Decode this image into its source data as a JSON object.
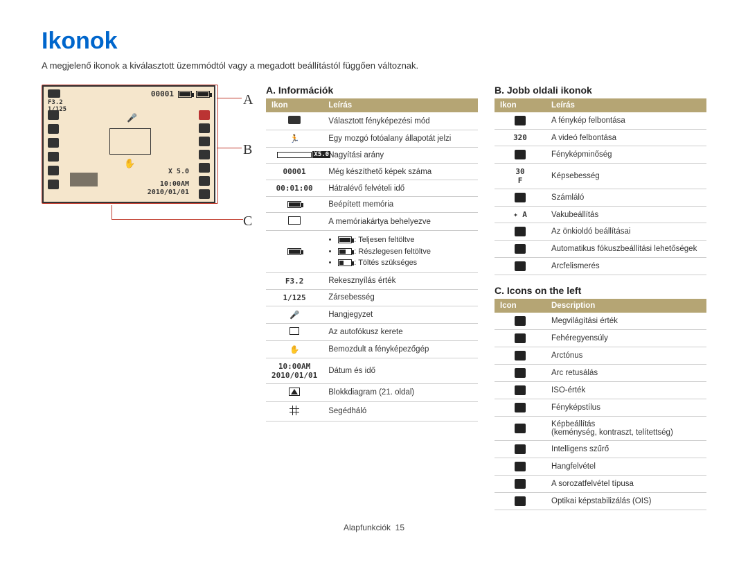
{
  "title": "Ikonok",
  "subtitle": "A megjelenő ikonok a kiválasztott üzemmódtól vagy a megadott beállítástól függően változnak.",
  "labels": {
    "A": "A",
    "B": "B",
    "C": "C"
  },
  "screen": {
    "aperture": "F3.2",
    "shutter": "1/125",
    "counter": "00001",
    "zoom": "X 5.0",
    "time": "10:00AM",
    "date": "2010/01/01"
  },
  "sectionA": {
    "title": "A. Információk",
    "headers": [
      "Ikon",
      "Leírás"
    ],
    "rows": [
      {
        "icon": "camera",
        "desc": "Választott fényképezési mód"
      },
      {
        "icon": "running",
        "desc": "Egy mozgó fotóalany állapotát jelzi"
      },
      {
        "icon": "zoombar",
        "desc": "Nagyítási arány"
      },
      {
        "icon_text": "00001",
        "desc": "Még készíthető képek száma"
      },
      {
        "icon_text": "00:01:00",
        "desc": "Hátralévő felvételi idő"
      },
      {
        "icon": "memory",
        "desc": "Beépített memória"
      },
      {
        "icon": "card",
        "desc": "A memóriakártya behelyezve"
      },
      {
        "icon": "battery",
        "desc_list": [
          ": Teljesen feltöltve",
          ": Részlegesen feltöltve",
          ": Töltés szükséges"
        ],
        "battery_labels": {
          "full": "",
          "half": "",
          "empty": ""
        }
      },
      {
        "icon_text": "F3.2",
        "desc": "Rekesznyílás érték"
      },
      {
        "icon_text": "1/125",
        "desc": "Zársebesség"
      },
      {
        "icon": "mic",
        "desc": "Hangjegyzet"
      },
      {
        "icon": "afframe",
        "desc": "Az autofókusz kerete"
      },
      {
        "icon": "shake",
        "desc": "Bemozdult a fényképezőgép"
      },
      {
        "icon_text": "10:00AM\n2010/01/01",
        "desc": "Dátum és idő"
      },
      {
        "icon": "histogram",
        "desc": "Blokkdiagram (21. oldal)"
      },
      {
        "icon": "grid",
        "desc": "Segédháló"
      }
    ]
  },
  "sectionB": {
    "title": "B. Jobb oldali ikonok",
    "headers": [
      "Ikon",
      "Leírás"
    ],
    "rows": [
      {
        "desc": "A fénykép felbontása"
      },
      {
        "icon_text": "320",
        "desc": "A videó felbontása"
      },
      {
        "desc": "Fényképminőség"
      },
      {
        "icon_text": "30\nF",
        "desc": "Képsebesség"
      },
      {
        "desc": "Számláló"
      },
      {
        "icon_text": "✦ A",
        "desc": "Vakubeállítás"
      },
      {
        "desc": "Az önkioldó beállításai"
      },
      {
        "desc": "Automatikus fókuszbeállítási lehetőségek"
      },
      {
        "desc": "Arcfelismerés"
      }
    ]
  },
  "sectionC": {
    "title": "C. Icons on the left",
    "headers": [
      "Icon",
      "Description"
    ],
    "rows": [
      {
        "desc": "Megvilágítási érték"
      },
      {
        "desc": "Fehéregyensúly"
      },
      {
        "desc": "Arctónus"
      },
      {
        "desc": "Arc retusálás"
      },
      {
        "desc": "ISO-érték"
      },
      {
        "desc": "Fényképstílus"
      },
      {
        "desc": "Képbeállítás\n(keménység, kontraszt, telítettség)"
      },
      {
        "desc": "Intelligens szűrő"
      },
      {
        "desc": "Hangfelvétel"
      },
      {
        "desc": "A sorozatfelvétel típusa"
      },
      {
        "desc": "Optikai képstabilizálás (OIS)"
      }
    ]
  },
  "footer": {
    "text": "Alapfunkciók",
    "page": "15"
  },
  "colors": {
    "title": "#0066cc",
    "table_header_bg": "#b5a574",
    "screen_bg": "#f5e6cc",
    "connector": "#c0392b"
  }
}
